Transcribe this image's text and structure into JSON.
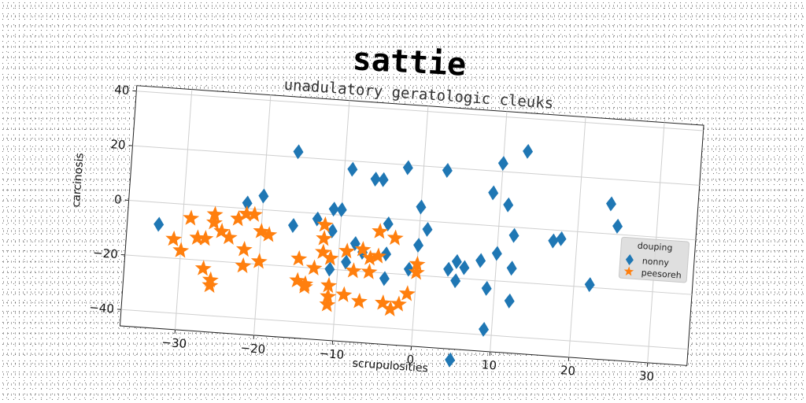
{
  "header": {
    "title": "sattie"
  },
  "chart_data": {
    "type": "scatter",
    "title": "unadulatory geratologic cleuks",
    "xlabel": "scrupulosities",
    "ylabel": "carcinosis",
    "xlim": [
      -37,
      35
    ],
    "ylim": [
      -46,
      42
    ],
    "xticks": [
      -30,
      -20,
      -10,
      0,
      10,
      20,
      30
    ],
    "yticks": [
      -40,
      -20,
      0,
      20,
      40
    ],
    "grid": true,
    "legend": {
      "title": "douping",
      "placement": "right"
    },
    "series": [
      {
        "name": "nonny",
        "marker": "diamond",
        "color": "#1f77b4",
        "points": [
          [
            -33,
            -8
          ],
          [
            -22,
            2
          ],
          [
            -20,
            5
          ],
          [
            -16,
            22
          ],
          [
            -16,
            -5
          ],
          [
            -13,
            -2
          ],
          [
            -11,
            2
          ],
          [
            -11,
            -6
          ],
          [
            -10,
            2
          ],
          [
            -9,
            17
          ],
          [
            -11,
            -20
          ],
          [
            -9,
            -17
          ],
          [
            -8,
            -10
          ],
          [
            -7,
            -13
          ],
          [
            -6,
            14
          ],
          [
            -5,
            14
          ],
          [
            -4,
            -13
          ],
          [
            -4,
            -2
          ],
          [
            -4,
            -22
          ],
          [
            -2,
            19
          ],
          [
            0,
            5
          ],
          [
            0,
            -9
          ],
          [
            1,
            -3
          ],
          [
            -1,
            -18
          ],
          [
            3,
            19
          ],
          [
            4,
            -17
          ],
          [
            5,
            -21
          ],
          [
            5,
            -14
          ],
          [
            6,
            -16
          ],
          [
            5,
            -50
          ],
          [
            8,
            -13
          ],
          [
            9,
            -23
          ],
          [
            9,
            -38
          ],
          [
            10,
            -10
          ],
          [
            9,
            12
          ],
          [
            10,
            23
          ],
          [
            11,
            8
          ],
          [
            12,
            -3
          ],
          [
            12,
            -15
          ],
          [
            13,
            28
          ],
          [
            12,
            -27
          ],
          [
            17,
            -4
          ],
          [
            18,
            -3
          ],
          [
            22,
            -19
          ],
          [
            24,
            11
          ],
          [
            25,
            3
          ]
        ]
      },
      {
        "name": "peesoreh",
        "marker": "star",
        "color": "#ff7f0e",
        "points": [
          [
            -31,
            -13
          ],
          [
            -30,
            -17
          ],
          [
            -29,
            -5
          ],
          [
            -28,
            -12
          ],
          [
            -27,
            -12
          ],
          [
            -26,
            -3
          ],
          [
            -26,
            -6
          ],
          [
            -25,
            -9
          ],
          [
            -27,
            -23
          ],
          [
            -26,
            -27
          ],
          [
            -26,
            -29
          ],
          [
            -24,
            -11
          ],
          [
            -23,
            -4
          ],
          [
            -22,
            -2
          ],
          [
            -22,
            -15
          ],
          [
            -21,
            -2
          ],
          [
            -20,
            -8
          ],
          [
            -19,
            -9
          ],
          [
            -22,
            -21
          ],
          [
            -20,
            -19
          ],
          [
            -15,
            -17
          ],
          [
            -15,
            -25
          ],
          [
            -14,
            -27
          ],
          [
            -13,
            -20
          ],
          [
            -12,
            -4
          ],
          [
            -12,
            -14
          ],
          [
            -12,
            -9
          ],
          [
            -11,
            -16
          ],
          [
            -9,
            -13
          ],
          [
            -8,
            -20
          ],
          [
            -7,
            -12
          ],
          [
            -6,
            -15
          ],
          [
            -6,
            -20
          ],
          [
            -5,
            -14
          ],
          [
            -5,
            -5
          ],
          [
            -11,
            -26
          ],
          [
            -11,
            -30
          ],
          [
            -11,
            -33
          ],
          [
            -9,
            -29
          ],
          [
            -7,
            -31
          ],
          [
            -4,
            -31
          ],
          [
            -3,
            -33
          ],
          [
            -2,
            -31
          ],
          [
            -1,
            -27
          ],
          [
            -3,
            -7
          ],
          [
            0,
            -16
          ],
          [
            0,
            -19
          ],
          [
            -14,
            -26
          ]
        ]
      }
    ]
  }
}
